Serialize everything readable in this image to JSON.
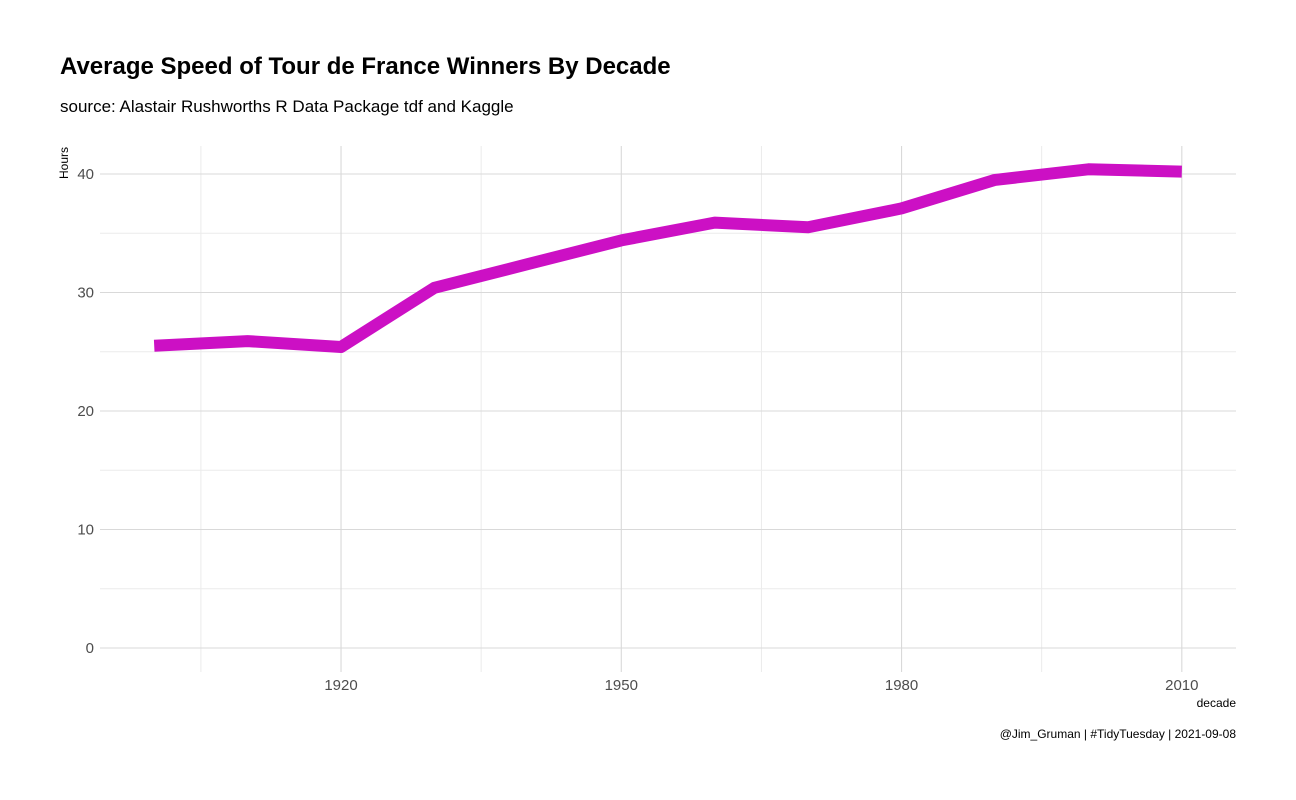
{
  "chart_data": {
    "type": "line",
    "title": "Average Speed of Tour de France Winners By Decade",
    "subtitle": "source: Alastair Rushworths R Data Package tdf and Kaggle",
    "caption": "@Jim_Gruman | #TidyTuesday | 2021-09-08",
    "xlabel": "decade",
    "ylabel": "Hours",
    "x": [
      1900,
      1910,
      1920,
      1930,
      1940,
      1950,
      1960,
      1970,
      1980,
      1990,
      2000,
      2010
    ],
    "series": [
      {
        "values": [
          25.5,
          25.9,
          25.4,
          30.4,
          32.4,
          34.4,
          35.9,
          35.5,
          37.1,
          39.5,
          40.4,
          40.2
        ]
      }
    ],
    "xlim": [
      1894.2,
      2015.8
    ],
    "ylim": [
      0,
      42
    ],
    "x_ticks": [
      1920,
      1950,
      1980,
      2010
    ],
    "x_minor_ticks": [
      1905,
      1935,
      1965,
      1995
    ],
    "y_ticks": [
      0,
      10,
      20,
      30,
      40
    ],
    "y_minor_ticks": [
      5,
      15,
      25,
      35
    ],
    "grid": true,
    "line_color": "#CC10C4"
  }
}
